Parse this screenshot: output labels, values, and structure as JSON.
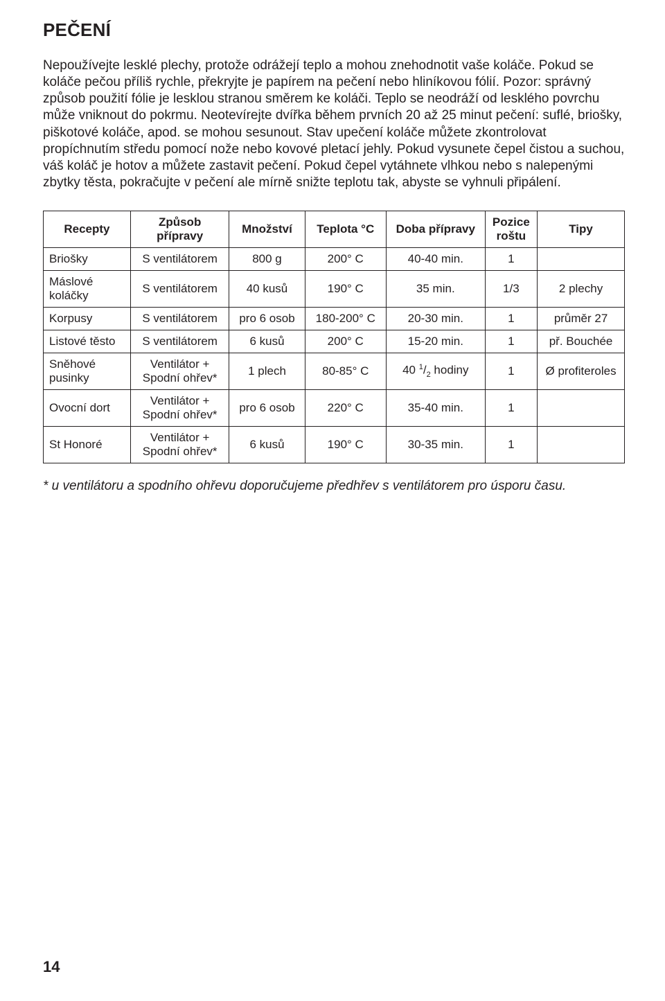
{
  "title": "PEČENÍ",
  "body_text": "Nepoužívejte lesklé plechy, protože odrážejí teplo a mohou znehodnotit vaše koláče. Pokud se koláče pečou příliš rychle, překryjte je papírem na pečení nebo hliníkovou fólií. Pozor: správný způsob použití fólie je lesklou stranou směrem ke koláči. Teplo se neodráží od lesklého povrchu  může vniknout do pokrmu. Neotevírejte dvířka během prvních 20 až 25 minut pečení: suflé, briošky,  piškotové koláče, apod. se mohou sesunout. Stav upečení koláče můžete zkontrolovat propíchnutím středu pomocí nože nebo kovové pletací jehly. Pokud vysunete čepel čistou a suchou, váš koláč je hotov a můžete zastavit pečení. Pokud čepel vytáhnete vlhkou nebo s nalepenými zbytky těsta, pokračujte v pečení ale mírně snižte teplotu tak, abyste se vyhnuli připálení.",
  "table": {
    "headers": [
      "Recepty",
      "Způsob přípravy",
      "Množství",
      "Teplota °C",
      "Doba přípravy",
      "Pozice roštu",
      "Tipy"
    ],
    "rows": [
      {
        "c0": "Briošky",
        "c1": "S ventilátorem",
        "c2": "800 g",
        "c3": "200° C",
        "c4": "40-40 min.",
        "c5": "1",
        "c6": ""
      },
      {
        "c0": "Máslové koláčky",
        "c1": "S ventilátorem",
        "c2": "40 kusů",
        "c3": "190° C",
        "c4": "35 min.",
        "c5": "1/3",
        "c6": "2 plechy"
      },
      {
        "c0": "Korpusy",
        "c1": "S ventilátorem",
        "c2": "pro 6 osob",
        "c3": "180-200° C",
        "c4": "20-30 min.",
        "c5": "1",
        "c6": "průměr 27"
      },
      {
        "c0": "Listové těsto",
        "c1": "S ventilátorem",
        "c2": "6 kusů",
        "c3": "200° C",
        "c4": "15-20 min.",
        "c5": "1",
        "c6": "př. Bouchée"
      },
      {
        "c0": "Sněhové pusinky",
        "c1": "Ventilátor + Spodní ohřev*",
        "c2": "1 plech",
        "c3": "80-85° C",
        "c4_pre": "40 ",
        "c4_sup": "1",
        "c4_mid": "/",
        "c4_sub": "2",
        "c4_post": " hodiny",
        "c5": "1",
        "c6": "Ø profiteroles"
      },
      {
        "c0": "Ovocní dort",
        "c1": "Ventilátor + Spodní ohřev*",
        "c2": "pro 6 osob",
        "c3": "220° C",
        "c4": "35-40 min.",
        "c5": "1",
        "c6": ""
      },
      {
        "c0": "St Honoré",
        "c1": "Ventilátor + Spodní ohřev*",
        "c2": "6 kusů",
        "c3": "190° C",
        "c4": "30-35 min.",
        "c5": "1",
        "c6": ""
      }
    ]
  },
  "footnote": "* u ventilátoru a spodního ohřevu doporučujeme předhřev s ventilátorem pro úsporu času.",
  "page_number": "14"
}
